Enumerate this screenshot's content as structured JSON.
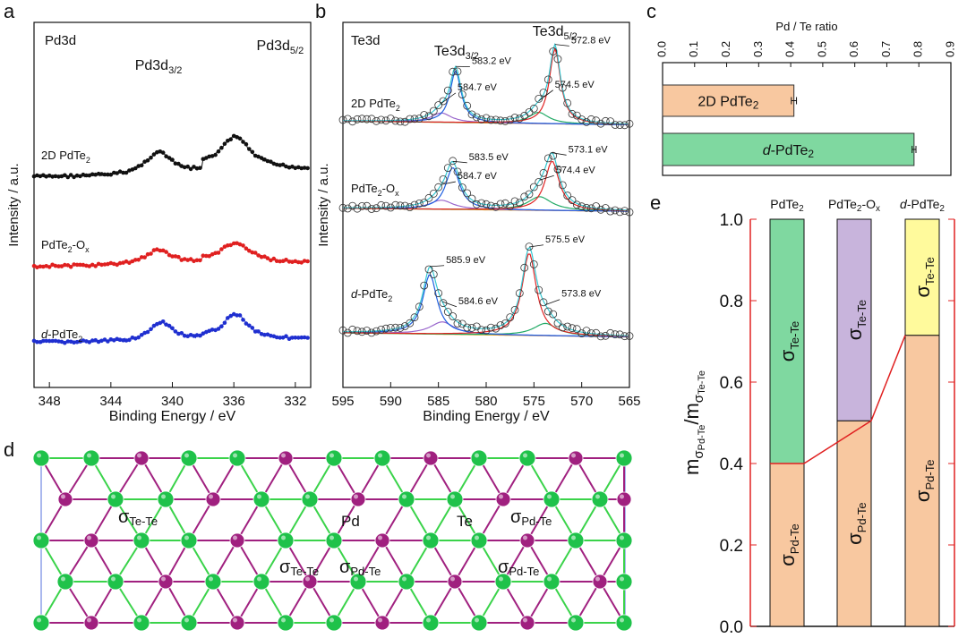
{
  "panel_letters": {
    "a": "a",
    "b": "b",
    "c": "c",
    "d": "d",
    "e": "e"
  },
  "colors": {
    "black": "#111111",
    "red": "#e02020",
    "blue": "#1f2fd0",
    "cyan": "#35c8d2",
    "fit_blue": "#1f5fe0",
    "purple": "#9966cc",
    "green_fit": "#22aa66",
    "orange_bg": "#e0a020",
    "fit_red": "#e02525",
    "bar_orange": "#f8c8a0",
    "bar_green": "#7fd8a0",
    "bar_purple": "#c8b4dc",
    "bar_yellow": "#fffa9c",
    "te_green": "#1fc24a",
    "pd_purple": "#a0207f",
    "bond_green": "#3ad34a",
    "bond_purple": "#a0207f",
    "cell_line": "#8ea0e8"
  },
  "chart_data": [
    {
      "id": "a",
      "type": "line",
      "title": "Pd3d",
      "xlabel": "Binding Energy / eV",
      "ylabel": "Intensity / a.u.",
      "xlim": [
        349,
        331
      ],
      "xticks": [
        348,
        344,
        340,
        336,
        332
      ],
      "xtick_labels": [
        "348",
        "344",
        "340",
        "336",
        "332"
      ],
      "peak_labels": [
        {
          "main": "Pd3d",
          "sub": "3/2",
          "x": 340.9
        },
        {
          "main": "Pd3d",
          "sub": "5/2",
          "x": 335.9
        }
      ],
      "series": [
        {
          "name": "2D PdTe2",
          "label_main": "2D PdTe",
          "label_sub": "2",
          "label_tail": "",
          "color": "#111111",
          "base": 0.92,
          "peaks": [
            [
              340.9,
              2.1,
              0.62
            ],
            [
              335.9,
              2.3,
              0.85
            ]
          ]
        },
        {
          "name": "PdTe2-Ox",
          "label_main": "PdTe",
          "label_sub": "2",
          "label_tail": "-O",
          "label_tail_sub": "x",
          "color": "#e02020",
          "base": 0.55,
          "peaks": [
            [
              340.9,
              2.3,
              0.4
            ],
            [
              335.9,
              2.4,
              0.52
            ]
          ]
        },
        {
          "name": "d-PdTe2",
          "label_main": "d-PdTe",
          "label_sub": "2",
          "label_tail": "",
          "color": "#1f2fd0",
          "base": 0.35,
          "peaks": [
            [
              340.7,
              1.9,
              0.45
            ],
            [
              335.9,
              1.9,
              0.6
            ]
          ]
        }
      ]
    },
    {
      "id": "b",
      "type": "line",
      "title": "Te3d",
      "xlabel": "Binding Energy / eV",
      "ylabel": "Intensity / a.u.",
      "xlim": [
        595,
        565
      ],
      "xticks": [
        595,
        590,
        585,
        580,
        575,
        570,
        565
      ],
      "xtick_labels": [
        "595",
        "590",
        "585",
        "580",
        "575",
        "570",
        "565"
      ],
      "peak_labels": [
        {
          "main": "Te3d",
          "sub": "3/2",
          "x": 583.1
        },
        {
          "main": "Te3d",
          "sub": "5/2",
          "x": 572.8
        }
      ],
      "series": [
        {
          "name": "2D PdTe2",
          "label_main": "2D PdTe",
          "label_sub": "2",
          "label_tail": "",
          "base": 0.35,
          "peaks": [
            [
              583.2,
              1.4,
              0.55
            ],
            [
              572.8,
              1.4,
              0.8
            ]
          ],
          "small": [
            [
              584.7,
              2.5,
              0.1
            ],
            [
              574.5,
              2.5,
              0.12
            ]
          ],
          "annotations": [
            {
              "text": "583.2 eV",
              "x": 583.2,
              "level": 0.7
            },
            {
              "text": "584.7 eV",
              "x": 584.7,
              "level": 0.42
            },
            {
              "text": "572.8 eV",
              "x": 572.8,
              "level": 0.92
            },
            {
              "text": "574.5 eV",
              "x": 574.5,
              "level": 0.45
            }
          ]
        },
        {
          "name": "PdTe2-Ox",
          "label_main": "PdTe",
          "label_sub": "2",
          "label_tail": "-O",
          "label_tail_sub": "x",
          "base": 0.3,
          "peaks": [
            [
              583.5,
              1.8,
              0.55
            ],
            [
              573.1,
              1.8,
              0.65
            ]
          ],
          "small": [
            [
              584.7,
              3,
              0.12
            ],
            [
              574.4,
              3,
              0.18
            ]
          ],
          "annotations": [
            {
              "text": "583.5 eV",
              "x": 583.5,
              "level": 0.72
            },
            {
              "text": "584.7 eV",
              "x": 584.7,
              "level": 0.47
            },
            {
              "text": "573.1 eV",
              "x": 573.1,
              "level": 0.82
            },
            {
              "text": "574.4 eV",
              "x": 574.4,
              "level": 0.55
            }
          ]
        },
        {
          "name": "d-PdTe2",
          "label_main": "d-PdTe",
          "label_sub": "2",
          "label_tail": "",
          "base": 0.2,
          "peaks": [
            [
              585.9,
              1.8,
              0.58
            ],
            [
              575.5,
              1.8,
              0.8
            ]
          ],
          "small": [
            [
              584.6,
              3,
              0.12
            ],
            [
              573.8,
              3,
              0.12
            ]
          ],
          "annotations": [
            {
              "text": "585.9 eV",
              "x": 585.9,
              "level": 0.75
            },
            {
              "text": "584.6 eV",
              "x": 584.6,
              "level": 0.35
            },
            {
              "text": "575.5 eV",
              "x": 575.5,
              "level": 0.95
            },
            {
              "text": "573.8 eV",
              "x": 573.8,
              "level": 0.42
            }
          ]
        }
      ]
    },
    {
      "id": "c",
      "type": "bar",
      "orientation": "horizontal",
      "title": "Pd / Te ratio",
      "xlim": [
        0.0,
        0.9
      ],
      "xticks": [
        0.0,
        0.1,
        0.2,
        0.3,
        0.4,
        0.5,
        0.6,
        0.7,
        0.8,
        0.9
      ],
      "xtick_labels": [
        "0.0",
        "0.1",
        "0.2",
        "0.3",
        "0.4",
        "0.5",
        "0.6",
        "0.7",
        "0.8",
        "0.9"
      ],
      "bars": [
        {
          "label": "2D PdTe",
          "label_sub": "2",
          "italic_prefix": "",
          "value": 0.41,
          "error": 0.008,
          "color": "#f8c8a0"
        },
        {
          "label": "-PdTe",
          "label_sub": "2",
          "italic_prefix": "d",
          "value": 0.785,
          "error": 0.006,
          "color": "#7fd8a0"
        }
      ]
    },
    {
      "id": "e",
      "type": "bar",
      "stacked": true,
      "ylim": [
        0.0,
        1.0
      ],
      "yticks": [
        0.0,
        0.2,
        0.4,
        0.6,
        0.8,
        1.0
      ],
      "ytick_labels": [
        "0.0",
        "0.2",
        "0.4",
        "0.6",
        "0.8",
        "1.0"
      ],
      "ylabel": {
        "m1": "m",
        "s1": "σ",
        "sub1": "Pd-Te",
        "slash": "/m",
        "s2": "σ",
        "sub2": "Te-Te"
      },
      "columns": [
        {
          "label": "PdTe",
          "label_sub": "2",
          "label_tail": "",
          "italic_prefix": "",
          "pd_te": 0.4,
          "te_te_color": "#7fd8a0"
        },
        {
          "label": "PdTe",
          "label_sub": "2",
          "label_tail": "-O",
          "label_tail_sub": "x",
          "italic_prefix": "",
          "pd_te": 0.505,
          "te_te_color": "#c8b4dc"
        },
        {
          "label": "-PdTe",
          "label_sub": "2",
          "label_tail": "",
          "italic_prefix": "d",
          "pd_te": 0.715,
          "te_te_color": "#fffa9c"
        }
      ],
      "segment_labels": {
        "pd_te": {
          "sym": "σ",
          "sub": "Pd-Te"
        },
        "te_te": {
          "sym": "σ",
          "sub": "Te-Te"
        }
      },
      "trend_line_color": "#e02020"
    }
  ],
  "structure_d": {
    "labels": [
      {
        "sym": "σ",
        "sub": "Te-Te"
      },
      {
        "text": "Pd"
      },
      {
        "text": "Te"
      },
      {
        "sym": "σ",
        "sub": "Pd-Te"
      },
      {
        "sym": "σ",
        "sub": "Te-Te"
      },
      {
        "sym": "σ",
        "sub": "Pd-Te"
      },
      {
        "sym": "σ",
        "sub": "Pd-Te"
      }
    ]
  }
}
